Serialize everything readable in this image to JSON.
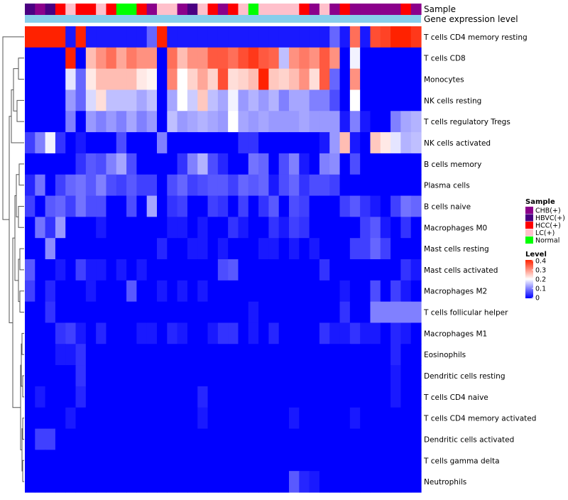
{
  "chart_data": {
    "type": "heatmap",
    "title": "",
    "annotation_labels": [
      "Sample",
      "Gene expression level"
    ],
    "rows": [
      "T cells CD4 memory resting",
      "T cells CD8",
      "Monocytes",
      "NK cells resting",
      "T cells regulatory  Tregs",
      "NK cells activated",
      "B cells memory",
      "Plasma cells",
      "B cells naive",
      "Macrophages M0",
      "Mast cells resting",
      "Mast cells activated",
      "Macrophages M2",
      "T cells follicular helper",
      "Macrophages M1",
      "Eosinophils",
      "Dendritic cells resting",
      "T cells CD4 naive",
      "T cells CD4 memory activated",
      "Dendritic cells activated",
      "T cells gamma delta",
      "Neutrophils"
    ],
    "sample_groups": [
      "HBVC(+)",
      "CHB(+)",
      "HBVC(+)",
      "HCC(+)",
      "LC(+)",
      "HCC(+)",
      "HCC(+)",
      "LC(+)",
      "HCC(+)",
      "Normal",
      "Normal",
      "HCC(+)",
      "CHB(+)",
      "LC(+)",
      "LC(+)",
      "CHB(+)",
      "HBVC(+)",
      "LC(+)",
      "HCC(+)",
      "CHB(+)",
      "HCC(+)",
      "LC(+)",
      "Normal",
      "LC(+)",
      "LC(+)",
      "LC(+)",
      "LC(+)",
      "HCC(+)",
      "CHB(+)",
      "LC(+)",
      "CHB(+)",
      "HCC(+)",
      "CHB(+)",
      "CHB(+)",
      "CHB(+)",
      "CHB(+)",
      "CHB(+)",
      "HCC(+)",
      "CHB(+)"
    ],
    "values": [
      [
        0.4,
        0.4,
        0.4,
        0.4,
        0.02,
        0.4,
        0.02,
        0.02,
        0.02,
        0.02,
        0.02,
        0.02,
        0.08,
        0.4,
        0.02,
        0.02,
        0.02,
        0.02,
        0.02,
        0.02,
        0.02,
        0.02,
        0.02,
        0.02,
        0.02,
        0.02,
        0.02,
        0.02,
        0.02,
        0.02,
        0.08,
        0.02,
        0.33,
        0.02,
        0.36,
        0.37,
        0.4,
        0.4,
        0.38
      ],
      [
        0.0,
        0.0,
        0.0,
        0.0,
        0.4,
        0.0,
        0.26,
        0.3,
        0.33,
        0.28,
        0.32,
        0.3,
        0.3,
        0.0,
        0.33,
        0.26,
        0.3,
        0.3,
        0.35,
        0.35,
        0.33,
        0.36,
        0.38,
        0.35,
        0.34,
        0.15,
        0.3,
        0.32,
        0.3,
        0.35,
        0.3,
        0.0,
        0.19,
        0.0,
        0.0,
        0.0,
        0.0,
        0.0,
        0.0
      ],
      [
        0.0,
        0.0,
        0.0,
        0.0,
        0.18,
        0.08,
        0.22,
        0.26,
        0.26,
        0.26,
        0.26,
        0.22,
        0.21,
        0.0,
        0.31,
        0.2,
        0.24,
        0.28,
        0.24,
        0.36,
        0.23,
        0.24,
        0.26,
        0.4,
        0.25,
        0.24,
        0.26,
        0.3,
        0.23,
        0.35,
        0.08,
        0.0,
        0.3,
        0.0,
        0.0,
        0.0,
        0.0,
        0.0,
        0.0
      ],
      [
        0.0,
        0.0,
        0.0,
        0.0,
        0.12,
        0.08,
        0.17,
        0.23,
        0.15,
        0.15,
        0.15,
        0.13,
        0.15,
        0.0,
        0.13,
        0.2,
        0.16,
        0.25,
        0.15,
        0.13,
        0.19,
        0.12,
        0.14,
        0.12,
        0.14,
        0.1,
        0.13,
        0.13,
        0.1,
        0.1,
        0.06,
        0.0,
        0.2,
        0.0,
        0.0,
        0.0,
        0.0,
        0.0,
        0.0
      ],
      [
        0.0,
        0.0,
        0.0,
        0.0,
        0.1,
        0.0,
        0.12,
        0.1,
        0.12,
        0.1,
        0.13,
        0.1,
        0.12,
        0.0,
        0.15,
        0.12,
        0.13,
        0.14,
        0.13,
        0.12,
        0.2,
        0.13,
        0.12,
        0.13,
        0.12,
        0.12,
        0.12,
        0.13,
        0.12,
        0.12,
        0.12,
        0.02,
        0.1,
        0.02,
        0.0,
        0.0,
        0.1,
        0.13,
        0.14
      ],
      [
        0.05,
        0.1,
        0.19,
        0.04,
        0.0,
        0.02,
        0.0,
        0.0,
        0.0,
        0.06,
        0.0,
        0.0,
        0.0,
        0.1,
        0.0,
        0.0,
        0.0,
        0.0,
        0.0,
        0.0,
        0.0,
        0.04,
        0.04,
        0.0,
        0.0,
        0.0,
        0.0,
        0.0,
        0.0,
        0.02,
        0.12,
        0.26,
        0.02,
        0.0,
        0.25,
        0.22,
        0.18,
        0.14,
        0.15
      ],
      [
        0.0,
        0.0,
        0.0,
        0.0,
        0.0,
        0.04,
        0.07,
        0.06,
        0.1,
        0.13,
        0.06,
        0.0,
        0.0,
        0.0,
        0.0,
        0.04,
        0.1,
        0.14,
        0.06,
        0.03,
        0.0,
        0.0,
        0.09,
        0.08,
        0.0,
        0.06,
        0.1,
        0.02,
        0.0,
        0.1,
        0.11,
        0.0,
        0.06,
        0.0,
        0.0,
        0.0,
        0.0,
        0.0,
        0.0
      ],
      [
        0.03,
        0.09,
        0.0,
        0.05,
        0.08,
        0.09,
        0.07,
        0.1,
        0.06,
        0.05,
        0.07,
        0.05,
        0.05,
        0.0,
        0.06,
        0.08,
        0.05,
        0.06,
        0.07,
        0.07,
        0.05,
        0.08,
        0.07,
        0.08,
        0.02,
        0.06,
        0.08,
        0.04,
        0.06,
        0.06,
        0.05,
        0.0,
        0.0,
        0.0,
        0.0,
        0.0,
        0.0,
        0.0,
        0.0
      ],
      [
        0.05,
        0.0,
        0.07,
        0.08,
        0.05,
        0.09,
        0.06,
        0.06,
        0.0,
        0.0,
        0.06,
        0.0,
        0.13,
        0.0,
        0.04,
        0.05,
        0.0,
        0.0,
        0.05,
        0.04,
        0.0,
        0.05,
        0.0,
        0.04,
        0.07,
        0.0,
        0.06,
        0.05,
        0.0,
        0.0,
        0.0,
        0.05,
        0.07,
        0.04,
        0.02,
        0.0,
        0.05,
        0.09,
        0.08
      ],
      [
        0.0,
        0.09,
        0.04,
        0.12,
        0.0,
        0.0,
        0.0,
        0.02,
        0.0,
        0.0,
        0.0,
        0.0,
        0.0,
        0.0,
        0.02,
        0.02,
        0.0,
        0.02,
        0.0,
        0.0,
        0.04,
        0.02,
        0.0,
        0.0,
        0.04,
        0.02,
        0.05,
        0.04,
        0.0,
        0.0,
        0.0,
        0.0,
        0.0,
        0.05,
        0.07,
        0.02,
        0.0,
        0.04,
        0.0
      ],
      [
        0.0,
        0.0,
        0.11,
        0.0,
        0.0,
        0.0,
        0.0,
        0.0,
        0.0,
        0.0,
        0.0,
        0.0,
        0.0,
        0.03,
        0.0,
        0.0,
        0.02,
        0.02,
        0.0,
        0.02,
        0.0,
        0.0,
        0.0,
        0.02,
        0.02,
        0.0,
        0.02,
        0.0,
        0.02,
        0.0,
        0.0,
        0.0,
        0.05,
        0.05,
        0.08,
        0.05,
        0.0,
        0.0,
        0.0
      ],
      [
        0.07,
        0.0,
        0.0,
        0.02,
        0.0,
        0.05,
        0.02,
        0.02,
        0.0,
        0.02,
        0.0,
        0.02,
        0.0,
        0.0,
        0.0,
        0.0,
        0.0,
        0.0,
        0.0,
        0.06,
        0.07,
        0.0,
        0.0,
        0.0,
        0.0,
        0.0,
        0.0,
        0.0,
        0.0,
        0.04,
        0.0,
        0.0,
        0.0,
        0.0,
        0.0,
        0.0,
        0.0,
        0.04,
        0.02
      ],
      [
        0.05,
        0.0,
        0.03,
        0.0,
        0.0,
        0.0,
        0.02,
        0.0,
        0.0,
        0.0,
        0.07,
        0.0,
        0.0,
        0.02,
        0.0,
        0.02,
        0.0,
        0.02,
        0.0,
        0.0,
        0.0,
        0.0,
        0.0,
        0.0,
        0.0,
        0.0,
        0.0,
        0.0,
        0.0,
        0.0,
        0.0,
        0.02,
        0.0,
        0.0,
        0.06,
        0.0,
        0.05,
        0.02,
        0.0
      ],
      [
        0.0,
        0.0,
        0.04,
        0.0,
        0.0,
        0.0,
        0.0,
        0.0,
        0.0,
        0.0,
        0.0,
        0.0,
        0.0,
        0.0,
        0.0,
        0.0,
        0.0,
        0.0,
        0.0,
        0.0,
        0.0,
        0.0,
        0.02,
        0.0,
        0.0,
        0.0,
        0.0,
        0.0,
        0.0,
        0.0,
        0.0,
        0.04,
        0.0,
        0.0,
        0.1,
        0.1,
        0.1,
        0.1,
        0.1
      ],
      [
        0.0,
        0.0,
        0.0,
        0.04,
        0.05,
        0.02,
        0.0,
        0.03,
        0.0,
        0.0,
        0.0,
        0.02,
        0.02,
        0.0,
        0.03,
        0.02,
        0.0,
        0.0,
        0.02,
        0.04,
        0.04,
        0.0,
        0.02,
        0.0,
        0.03,
        0.0,
        0.0,
        0.0,
        0.0,
        0.04,
        0.02,
        0.02,
        0.04,
        0.02,
        0.02,
        0.0,
        0.03,
        0.02,
        0.0
      ],
      [
        0.0,
        0.0,
        0.0,
        0.02,
        0.02,
        0.04,
        0.0,
        0.0,
        0.0,
        0.0,
        0.0,
        0.0,
        0.0,
        0.0,
        0.0,
        0.0,
        0.0,
        0.0,
        0.0,
        0.0,
        0.0,
        0.0,
        0.0,
        0.0,
        0.0,
        0.0,
        0.0,
        0.0,
        0.0,
        0.0,
        0.0,
        0.0,
        0.0,
        0.0,
        0.0,
        0.0,
        0.03,
        0.0,
        0.0
      ],
      [
        0.0,
        0.0,
        0.0,
        0.0,
        0.0,
        0.04,
        0.0,
        0.0,
        0.0,
        0.0,
        0.0,
        0.0,
        0.0,
        0.0,
        0.0,
        0.0,
        0.0,
        0.0,
        0.0,
        0.0,
        0.0,
        0.0,
        0.0,
        0.0,
        0.0,
        0.0,
        0.0,
        0.0,
        0.0,
        0.0,
        0.0,
        0.0,
        0.0,
        0.0,
        0.0,
        0.0,
        0.02,
        0.0,
        0.0
      ],
      [
        0.0,
        0.02,
        0.0,
        0.0,
        0.0,
        0.03,
        0.0,
        0.0,
        0.0,
        0.0,
        0.0,
        0.0,
        0.0,
        0.0,
        0.0,
        0.0,
        0.0,
        0.03,
        0.0,
        0.0,
        0.0,
        0.0,
        0.0,
        0.0,
        0.0,
        0.0,
        0.0,
        0.0,
        0.0,
        0.0,
        0.0,
        0.0,
        0.0,
        0.0,
        0.0,
        0.0,
        0.02,
        0.0,
        0.0
      ],
      [
        0.0,
        0.0,
        0.0,
        0.0,
        0.02,
        0.0,
        0.0,
        0.0,
        0.0,
        0.0,
        0.0,
        0.0,
        0.0,
        0.0,
        0.0,
        0.0,
        0.0,
        0.02,
        0.0,
        0.0,
        0.0,
        0.0,
        0.0,
        0.0,
        0.0,
        0.0,
        0.02,
        0.0,
        0.0,
        0.0,
        0.0,
        0.0,
        0.02,
        0.0,
        0.0,
        0.0,
        0.0,
        0.0,
        0.0
      ],
      [
        0.0,
        0.05,
        0.05,
        0.0,
        0.0,
        0.0,
        0.0,
        0.0,
        0.0,
        0.0,
        0.0,
        0.0,
        0.0,
        0.0,
        0.0,
        0.0,
        0.0,
        0.0,
        0.0,
        0.0,
        0.0,
        0.0,
        0.0,
        0.0,
        0.0,
        0.0,
        0.0,
        0.0,
        0.0,
        0.0,
        0.0,
        0.0,
        0.0,
        0.0,
        0.0,
        0.0,
        0.0,
        0.0,
        0.0
      ],
      [
        0.0,
        0.0,
        0.0,
        0.0,
        0.0,
        0.0,
        0.0,
        0.0,
        0.0,
        0.0,
        0.0,
        0.0,
        0.0,
        0.0,
        0.0,
        0.0,
        0.0,
        0.0,
        0.0,
        0.0,
        0.0,
        0.0,
        0.0,
        0.0,
        0.0,
        0.0,
        0.0,
        0.0,
        0.0,
        0.0,
        0.0,
        0.0,
        0.0,
        0.0,
        0.0,
        0.0,
        0.0,
        0.0,
        0.0
      ],
      [
        0.0,
        0.0,
        0.0,
        0.0,
        0.0,
        0.0,
        0.0,
        0.0,
        0.0,
        0.0,
        0.0,
        0.0,
        0.0,
        0.0,
        0.0,
        0.0,
        0.0,
        0.0,
        0.0,
        0.0,
        0.0,
        0.0,
        0.0,
        0.0,
        0.0,
        0.0,
        0.07,
        0.03,
        0.02,
        0.0,
        0.0,
        0.0,
        0.0,
        0.0,
        0.0,
        0.0,
        0.0,
        0.0,
        0.0
      ]
    ],
    "value_range": [
      0,
      0.4
    ],
    "color_scale": {
      "low": "#0000ff",
      "mid": "#ffffff",
      "high": "#ff2200",
      "mid_value": 0.2
    },
    "legend": {
      "sample": {
        "title": "Sample",
        "entries": [
          {
            "label": "CHB(+)",
            "color": "#8b008b"
          },
          {
            "label": "HBVC(+)",
            "color": "#4b0082"
          },
          {
            "label": "HCC(+)",
            "color": "#ff0000"
          },
          {
            "label": "LC(+)",
            "color": "#ffc0cb"
          },
          {
            "label": "Normal",
            "color": "#00ff00"
          }
        ]
      },
      "level": {
        "title": "Level",
        "ticks": [
          "0.4",
          "0.3",
          "0.2",
          "0.1",
          "0"
        ]
      },
      "placement": "right"
    },
    "gene_expression_bar_color": "#87ceeb"
  }
}
